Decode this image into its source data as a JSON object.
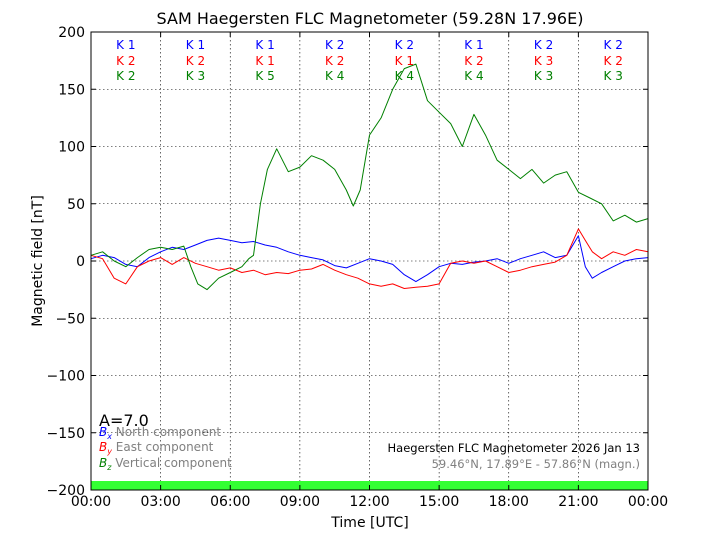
{
  "chart_data": {
    "type": "line",
    "title": "SAM Haegersten FLC Magnetometer (59.28N 17.96E)",
    "xlabel": "Time [UTC]",
    "ylabel": "Magnetic field [nT]",
    "xlim": [
      0,
      24
    ],
    "ylim": [
      -200,
      200
    ],
    "grid": true,
    "x_ticks": [
      0,
      3,
      6,
      9,
      12,
      15,
      18,
      21,
      24
    ],
    "x_tick_labels": [
      "00:00",
      "03:00",
      "06:00",
      "09:00",
      "12:00",
      "15:00",
      "18:00",
      "21:00",
      "00:00"
    ],
    "y_ticks": [
      -200,
      -150,
      -100,
      -50,
      0,
      50,
      100,
      150,
      200
    ],
    "y_tick_labels": [
      "−200",
      "−150",
      "−100",
      "−50",
      "0",
      "50",
      "100",
      "150",
      "200"
    ],
    "k_indices": {
      "rows": [
        {
          "component": "north",
          "color": "#0000ff",
          "labels": [
            "K 1",
            "K 1",
            "K 1",
            "K 2",
            "K 2",
            "K 1",
            "K 2",
            "K 2"
          ]
        },
        {
          "component": "east",
          "color": "#ff0000",
          "labels": [
            "K 2",
            "K 2",
            "K 1",
            "K 2",
            "K 1",
            "K 2",
            "K 3",
            "K 2"
          ]
        },
        {
          "component": "vertical",
          "color": "#008000",
          "labels": [
            "K 2",
            "K 3",
            "K 5",
            "K 4",
            "K 4",
            "K 4",
            "K 3",
            "K 3"
          ]
        }
      ]
    },
    "a_index": "A=7.0",
    "legend": {
      "placement": "bottom-left",
      "items": [
        {
          "symbol": "B",
          "sub": "x",
          "label": "North component",
          "color": "#0000ff"
        },
        {
          "symbol": "B",
          "sub": "y",
          "label": "East component",
          "color": "#ff0000"
        },
        {
          "symbol": "B",
          "sub": "z",
          "label": "Vertical component",
          "color": "#008000"
        }
      ]
    },
    "annotation": {
      "station": "Haegersten FLC Magnetometer 2026 Jan 13",
      "coords": "59.46°N, 17.89°E - 57.86°N (magn.)"
    },
    "status_bar_color": "#33ff33",
    "series": [
      {
        "name": "Bx North component",
        "color": "#0000ff",
        "x": [
          0,
          0.5,
          1.0,
          1.5,
          2.0,
          2.5,
          3.0,
          3.5,
          4.0,
          4.5,
          5.0,
          5.5,
          6.0,
          6.5,
          7.0,
          7.5,
          8.0,
          8.5,
          9.0,
          9.5,
          10.0,
          10.5,
          11.0,
          11.5,
          12.0,
          12.5,
          13.0,
          13.5,
          14.0,
          14.5,
          15.0,
          15.5,
          16.0,
          16.5,
          17.0,
          17.5,
          18.0,
          18.5,
          19.0,
          19.5,
          20.0,
          20.5,
          21.0,
          21.3,
          21.6,
          22.0,
          22.5,
          23.0,
          23.5,
          24.0
        ],
        "values": [
          2,
          5,
          3,
          -3,
          -5,
          3,
          8,
          12,
          10,
          14,
          18,
          20,
          18,
          16,
          17,
          14,
          12,
          8,
          5,
          3,
          1,
          -4,
          -6,
          -2,
          2,
          0,
          -3,
          -12,
          -18,
          -12,
          -5,
          -2,
          -3,
          -1,
          0,
          2,
          -2,
          2,
          5,
          8,
          3,
          5,
          22,
          -5,
          -15,
          -10,
          -5,
          0,
          2,
          3
        ]
      },
      {
        "name": "By East component",
        "color": "#ff0000",
        "x": [
          0,
          0.5,
          1.0,
          1.5,
          2.0,
          2.5,
          3.0,
          3.5,
          4.0,
          4.5,
          5.0,
          5.5,
          6.0,
          6.5,
          7.0,
          7.5,
          8.0,
          8.5,
          9.0,
          9.5,
          10.0,
          10.5,
          11.0,
          11.5,
          12.0,
          12.5,
          13.0,
          13.5,
          14.0,
          14.5,
          15.0,
          15.5,
          16.0,
          16.5,
          17.0,
          17.5,
          18.0,
          18.5,
          19.0,
          19.5,
          20.0,
          20.5,
          21.0,
          21.3,
          21.6,
          22.0,
          22.5,
          23.0,
          23.5,
          24.0
        ],
        "values": [
          5,
          2,
          -15,
          -20,
          -5,
          0,
          3,
          -3,
          3,
          -2,
          -5,
          -8,
          -6,
          -10,
          -8,
          -12,
          -10,
          -11,
          -8,
          -7,
          -3,
          -8,
          -12,
          -15,
          -20,
          -22,
          -20,
          -24,
          -23,
          -22,
          -20,
          -2,
          0,
          -2,
          0,
          -5,
          -10,
          -8,
          -5,
          -3,
          -1,
          5,
          28,
          18,
          8,
          2,
          8,
          5,
          10,
          8
        ]
      },
      {
        "name": "Bz Vertical component",
        "color": "#008000",
        "x": [
          0,
          0.5,
          1.0,
          1.5,
          2.0,
          2.5,
          3.0,
          3.5,
          4.0,
          4.3,
          4.6,
          5.0,
          5.5,
          6.0,
          6.5,
          6.8,
          7.0,
          7.3,
          7.6,
          8.0,
          8.5,
          9.0,
          9.5,
          10.0,
          10.5,
          11.0,
          11.3,
          11.6,
          12.0,
          12.5,
          13.0,
          13.5,
          14.0,
          14.5,
          15.0,
          15.5,
          16.0,
          16.5,
          17.0,
          17.5,
          18.0,
          18.5,
          19.0,
          19.5,
          20.0,
          20.5,
          21.0,
          21.5,
          22.0,
          22.5,
          23.0,
          23.5,
          24.0
        ],
        "values": [
          5,
          8,
          0,
          -5,
          3,
          10,
          12,
          10,
          13,
          -5,
          -20,
          -25,
          -15,
          -10,
          -5,
          2,
          5,
          50,
          80,
          98,
          78,
          82,
          92,
          88,
          80,
          62,
          48,
          62,
          110,
          125,
          150,
          168,
          172,
          140,
          130,
          120,
          100,
          128,
          110,
          88,
          80,
          72,
          80,
          68,
          75,
          78,
          60,
          55,
          50,
          35,
          40,
          34,
          37
        ]
      }
    ]
  }
}
